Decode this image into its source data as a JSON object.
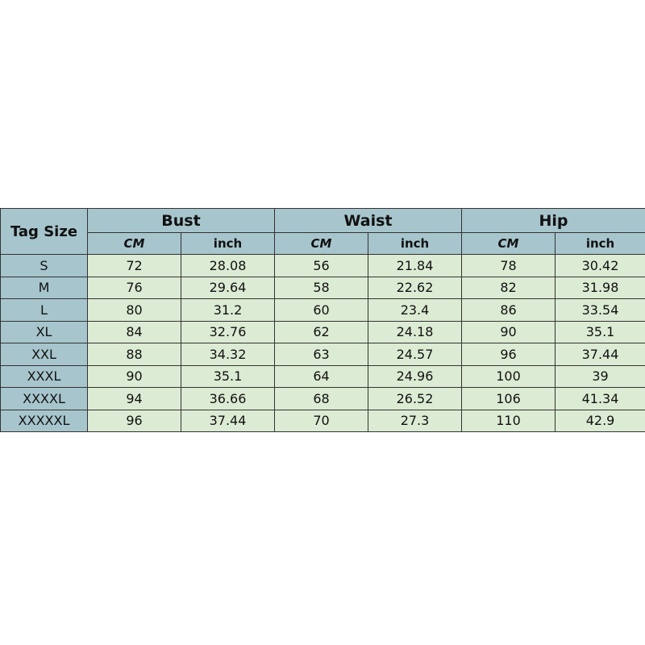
{
  "table": {
    "tag_header": "Tag Size",
    "groups": [
      "Bust",
      "Waist",
      "Hip"
    ],
    "subheaders": [
      "CM",
      "inch",
      "CM",
      "inch",
      "CM",
      "inch"
    ],
    "rows": [
      [
        "S",
        "72",
        "28.08",
        "56",
        "21.84",
        "78",
        "30.42"
      ],
      [
        "M",
        "76",
        "29.64",
        "58",
        "22.62",
        "82",
        "31.98"
      ],
      [
        "L",
        "80",
        "31.2",
        "60",
        "23.4",
        "86",
        "33.54"
      ],
      [
        "XL",
        "84",
        "32.76",
        "62",
        "24.18",
        "90",
        "35.1"
      ],
      [
        "XXL",
        "88",
        "34.32",
        "63",
        "24.57",
        "96",
        "37.44"
      ],
      [
        "XXXL",
        "90",
        "35.1",
        "64",
        "24.96",
        "100",
        "39"
      ],
      [
        "XXXXL",
        "94",
        "36.66",
        "68",
        "26.52",
        "106",
        "41.34"
      ],
      [
        "XXXXXL",
        "96",
        "37.44",
        "70",
        "27.3",
        "110",
        "42.9"
      ]
    ]
  },
  "colors": {
    "header": "#a7c5cc",
    "cell": "#dcebd3"
  }
}
